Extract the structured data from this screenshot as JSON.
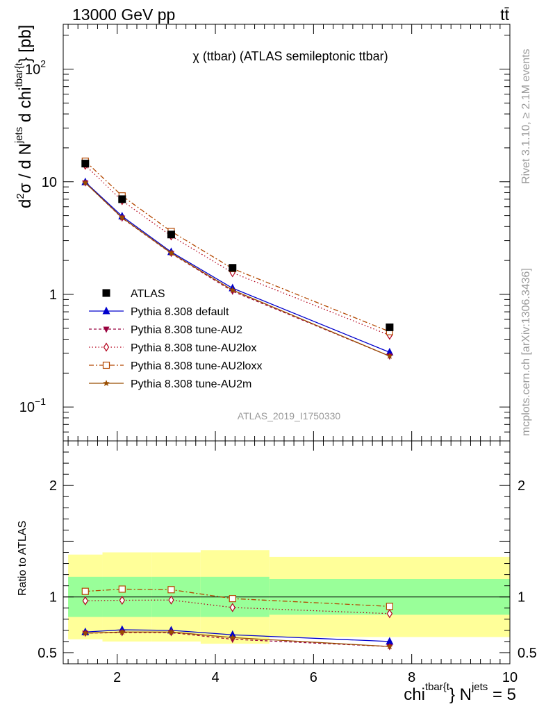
{
  "header": {
    "energy_label": "13000 GeV pp",
    "process_label": "tt̄"
  },
  "side_labels": {
    "rivet": "Rivet 3.1.10, ≥ 2.1M events",
    "mcplots": "mcplots.cern.ch [arXiv:1306.3436]"
  },
  "chart_data": {
    "type": "line",
    "title": "χ (ttbar) (ATLAS semileptonic ttbar)",
    "analysis_label": "ATLAS_2019_I1750330",
    "xlabel": {
      "main": "chi",
      "sup1": "tbar{t",
      "mid": "} N",
      "sup2": "jets",
      "end": " = 5"
    },
    "ylabel": {
      "p1": "d",
      "sup1": "2",
      "p2": "σ / d N",
      "sup2": "jets",
      "p3": " d chi",
      "sup3": "tbar{t",
      "p4": "} [pb]"
    },
    "ratio_ylabel": "Ratio to ATLAS",
    "x_range": [
      0.9,
      10.0
    ],
    "y_scale": "log",
    "y_range": [
      0.05,
      250
    ],
    "ratio_range": [
      0.4,
      2.4
    ],
    "x_ticks": [
      "2",
      "4",
      "6",
      "8",
      "10"
    ],
    "y_ticks": [
      {
        "base": "10",
        "exp": "2",
        "value": 100
      },
      {
        "base": "10",
        "exp": "",
        "value": 10
      },
      {
        "base": "1",
        "exp": "",
        "value": 1
      },
      {
        "base": "10",
        "exp": "−1",
        "value": 0.1
      }
    ],
    "ratio_ticks": [
      "0.5",
      "1",
      "2"
    ],
    "x": [
      1.35,
      2.1,
      3.1,
      4.35,
      7.55
    ],
    "bins": [
      [
        1.0,
        1.7
      ],
      [
        1.7,
        2.7
      ],
      [
        2.7,
        3.7
      ],
      [
        3.7,
        5.1
      ],
      [
        5.1,
        10.0
      ]
    ],
    "band_inner": [
      0.18,
      0.18,
      0.18,
      0.18,
      0.16
    ],
    "band_outer": [
      0.38,
      0.4,
      0.4,
      0.42,
      0.36
    ],
    "data": {
      "name": "ATLAS",
      "values": [
        14.5,
        7.0,
        3.4,
        1.72,
        0.51
      ]
    },
    "series": [
      {
        "name": "Pythia 8.308 default",
        "color": "#0000cc",
        "dash": "",
        "marker": "triangle",
        "ratio": [
          0.685,
          0.705,
          0.7,
          0.66,
          0.6
        ]
      },
      {
        "name": "Pythia 8.308 tune-AU2",
        "color": "#99003d",
        "dash": "4,3",
        "marker": "triangle-down",
        "ratio": [
          0.675,
          0.68,
          0.68,
          0.62,
          0.555
        ]
      },
      {
        "name": "Pythia 8.308 tune-AU2lox",
        "color": "#b3001a",
        "dash": "1.5,3",
        "marker": "diamond",
        "ratio": [
          0.965,
          0.97,
          0.972,
          0.905,
          0.85
        ]
      },
      {
        "name": "Pythia 8.308 tune-AU2loxx",
        "color": "#b34700",
        "dash": "7,3,2,3",
        "marker": "square",
        "ratio": [
          1.05,
          1.07,
          1.065,
          0.985,
          0.915
        ]
      },
      {
        "name": "Pythia 8.308 tune-AU2m",
        "color": "#994d00",
        "dash": "",
        "marker": "star",
        "ratio": [
          0.675,
          0.685,
          0.685,
          0.635,
          0.555
        ]
      }
    ]
  }
}
